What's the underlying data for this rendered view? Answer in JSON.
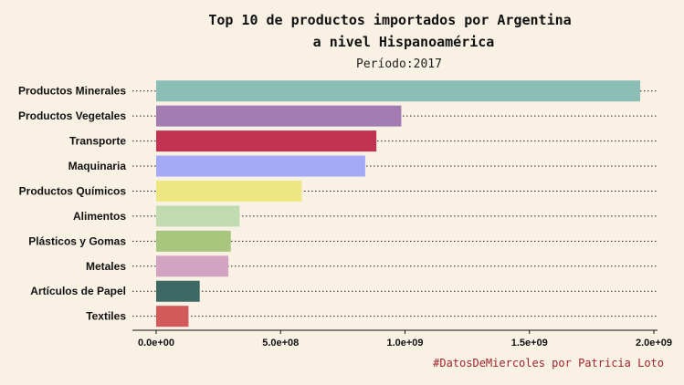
{
  "chart_data": {
    "type": "bar",
    "orientation": "horizontal",
    "title": "Top 10 de productos importados por Argentina",
    "title_line2": "a nivel Hispanoamérica",
    "subtitle": "Período:2017",
    "caption": "#DatosDeMiercoles por Patricia Loto",
    "xlabel": "",
    "ylabel": "",
    "xlim": [
      0,
      2000000000
    ],
    "x_ticks": [
      0,
      500000000,
      1000000000,
      1500000000,
      2000000000
    ],
    "x_tick_labels": [
      "0.0e+00",
      "5.0e+08",
      "1.0e+09",
      "1.5e+09",
      "2.0e+09"
    ],
    "grid": "dotted horizontal lines per category",
    "legend": "none",
    "categories": [
      "Productos Minerales",
      "Productos Vegetales",
      "Transporte",
      "Maquinaria",
      "Productos Químicos",
      "Alimentos",
      "Plásticos y Gomas",
      "Metales",
      "Artículos de Papel",
      "Textiles"
    ],
    "values": [
      1945000000,
      985000000,
      885000000,
      840000000,
      585000000,
      335000000,
      300000000,
      290000000,
      175000000,
      130000000
    ],
    "colors": [
      "#8bbfb6",
      "#a37cb2",
      "#c23352",
      "#a4aaf7",
      "#eee683",
      "#c0dbb0",
      "#a9c67f",
      "#d3a3c2",
      "#3c6964",
      "#d45b5b"
    ]
  }
}
